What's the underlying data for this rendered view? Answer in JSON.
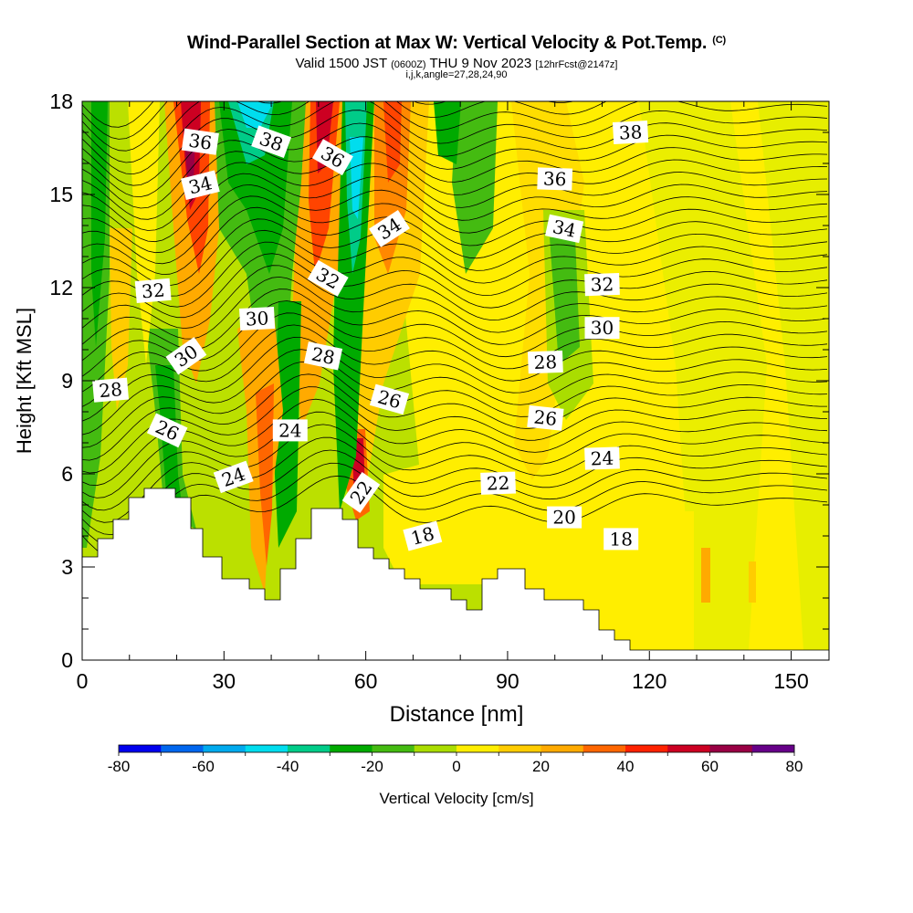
{
  "header": {
    "title": "Wind-Parallel Section at Max W: Vertical Velocity & Pot.Temp.",
    "copyright": "(C)",
    "valid_prefix": "Valid 1500 JST",
    "valid_utc": "(0600Z)",
    "valid_date": "THU 9 Nov 2023",
    "forecast": "[12hrFcst@2147z]",
    "indices": "i,j,k,angle=27,28,24,90"
  },
  "chart_data": {
    "type": "heatmap",
    "title": "Wind-Parallel Section at Max W: Vertical Velocity & Pot.Temp.",
    "xlabel": "Distance [nm]",
    "ylabel": "Height [Kft MSL]",
    "xlim": [
      0,
      158
    ],
    "ylim": [
      0,
      18
    ],
    "x_ticks": [
      0,
      30,
      60,
      90,
      120,
      150
    ],
    "y_ticks": [
      0,
      3,
      6,
      9,
      12,
      15,
      18
    ],
    "colorbar": {
      "label": "Vertical Velocity [cm/s]",
      "range": [
        -80,
        80
      ],
      "step": 10,
      "tick_labels": [
        "-80",
        "-60",
        "-40",
        "-20",
        "0",
        "20",
        "40",
        "60",
        "80"
      ],
      "colors": [
        "#0000ee",
        "#0066ee",
        "#00aaee",
        "#00ddee",
        "#00cc88",
        "#00aa00",
        "#44bb11",
        "#aadd00",
        "#ffee00",
        "#ffcc00",
        "#ffaa00",
        "#ff6600",
        "#ff2200",
        "#cc0022",
        "#990044",
        "#660088"
      ]
    },
    "theta_contour_labels": [
      {
        "x": 25,
        "y": 16.7,
        "label": "36",
        "rot": 8
      },
      {
        "x": 40,
        "y": 16.7,
        "label": "38",
        "rot": 20
      },
      {
        "x": 53,
        "y": 16.2,
        "label": "36",
        "rot": 30
      },
      {
        "x": 116,
        "y": 17.0,
        "label": "38",
        "rot": -3
      },
      {
        "x": 25,
        "y": 15.3,
        "label": "34",
        "rot": -14
      },
      {
        "x": 100,
        "y": 15.5,
        "label": "36",
        "rot": 2
      },
      {
        "x": 65,
        "y": 13.9,
        "label": "34",
        "rot": -33
      },
      {
        "x": 102,
        "y": 13.9,
        "label": "34",
        "rot": 12
      },
      {
        "x": 52,
        "y": 12.3,
        "label": "32",
        "rot": 30
      },
      {
        "x": 15,
        "y": 11.9,
        "label": "32",
        "rot": -5
      },
      {
        "x": 110,
        "y": 12.1,
        "label": "32",
        "rot": -2
      },
      {
        "x": 37,
        "y": 11.0,
        "label": "30",
        "rot": -3
      },
      {
        "x": 110,
        "y": 10.7,
        "label": "30",
        "rot": 0
      },
      {
        "x": 22,
        "y": 9.8,
        "label": "30",
        "rot": -35
      },
      {
        "x": 51,
        "y": 9.8,
        "label": "28",
        "rot": 12
      },
      {
        "x": 98,
        "y": 9.6,
        "label": "28",
        "rot": -2
      },
      {
        "x": 6,
        "y": 8.7,
        "label": "28",
        "rot": -5
      },
      {
        "x": 65,
        "y": 8.4,
        "label": "26",
        "rot": 16
      },
      {
        "x": 98,
        "y": 7.8,
        "label": "26",
        "rot": 6
      },
      {
        "x": 18,
        "y": 7.4,
        "label": "26",
        "rot": 25
      },
      {
        "x": 44,
        "y": 7.4,
        "label": "24",
        "rot": 0
      },
      {
        "x": 110,
        "y": 6.5,
        "label": "24",
        "rot": -2
      },
      {
        "x": 32,
        "y": 5.9,
        "label": "24",
        "rot": -20
      },
      {
        "x": 59,
        "y": 5.4,
        "label": "22",
        "rot": -55
      },
      {
        "x": 88,
        "y": 5.7,
        "label": "22",
        "rot": -2
      },
      {
        "x": 102,
        "y": 4.6,
        "label": "20",
        "rot": 0
      },
      {
        "x": 72,
        "y": 4.0,
        "label": "18",
        "rot": -15
      },
      {
        "x": 114,
        "y": 3.9,
        "label": "18",
        "rot": 0
      }
    ]
  }
}
